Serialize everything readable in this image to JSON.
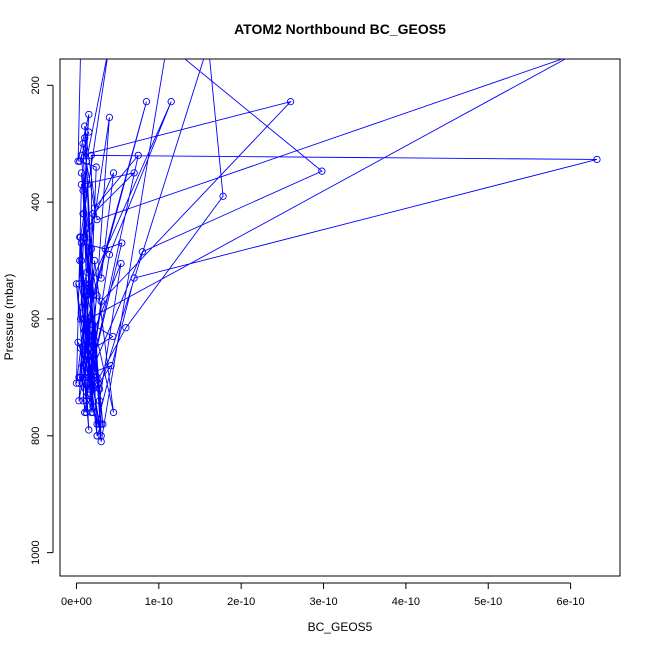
{
  "chart_data": {
    "type": "line",
    "title": "ATOM2 Northbound BC_GEOS5",
    "xlabel": "BC_GEOS5",
    "ylabel": "Pressure (mbar)",
    "xlim": [
      -2e-11,
      6.6e-10
    ],
    "ylim": [
      1040,
      155
    ],
    "y_reversed": true,
    "grid": false,
    "legend": "none",
    "colors": {
      "series": "#0000ff",
      "axis": "#000000",
      "background": "#ffffff"
    },
    "x_ticks": [
      {
        "value": 0,
        "label": "0e+00"
      },
      {
        "value": 1e-10,
        "label": "1e-10"
      },
      {
        "value": 2e-10,
        "label": "2e-10"
      },
      {
        "value": 3e-10,
        "label": "3e-10"
      },
      {
        "value": 4e-10,
        "label": "4e-10"
      },
      {
        "value": 5e-10,
        "label": "5e-10"
      },
      {
        "value": 6e-10,
        "label": "6e-10"
      }
    ],
    "y_ticks": [
      {
        "value": 200,
        "label": "200"
      },
      {
        "value": 400,
        "label": "400"
      },
      {
        "value": 600,
        "label": "600"
      },
      {
        "value": 800,
        "label": "800"
      },
      {
        "value": 1000,
        "label": "1000"
      }
    ],
    "series": [
      {
        "points": [
          [
            5e-12,
            140
          ],
          [
            2e-12,
            330
          ],
          [
            1.5e-11,
            250
          ],
          [
            8e-12,
            420
          ],
          [
            2.5e-11,
            560
          ],
          [
            1e-11,
            700
          ],
          [
            0.0,
            540
          ],
          [
            2e-11,
            760
          ],
          [
            5e-12,
            460
          ],
          [
            4e-11,
            130
          ],
          [
            1.2e-11,
            330
          ],
          [
            5e-12,
            600
          ],
          [
            2.8e-11,
            780
          ],
          [
            3e-12,
            710
          ],
          [
            1.8e-11,
            480
          ],
          [
            6e-12,
            350
          ],
          [
            3e-11,
            800
          ],
          [
            1e-11,
            620
          ],
          [
            8.5e-11,
            228
          ],
          [
            2e-11,
            560
          ],
          [
            8e-12,
            680
          ],
          [
            1.5e-11,
            790
          ],
          [
            4e-12,
            500
          ],
          [
            2.6e-11,
            710
          ],
          [
            9e-12,
            420
          ],
          [
            3.2e-11,
            780
          ],
          [
            1.1e-11,
            560
          ],
          [
            1.15e-10,
            228
          ],
          [
            4e-11,
            490
          ],
          [
            1e-11,
            760
          ],
          [
            5e-12,
            650
          ],
          [
            2.2e-11,
            690
          ],
          [
            1.3e-11,
            370
          ],
          [
            3e-12,
            540
          ],
          [
            2.8e-11,
            720
          ],
          [
            1.6e-10,
            130
          ],
          [
            1.78e-10,
            390
          ],
          [
            6e-11,
            615
          ],
          [
            2e-11,
            720
          ],
          [
            8e-12,
            600
          ],
          [
            2.5e-11,
            800
          ],
          [
            1.4e-11,
            470
          ],
          [
            6e-12,
            320
          ],
          [
            2.6e-10,
            228
          ],
          [
            3e-11,
            570
          ],
          [
            1.2e-11,
            740
          ],
          [
            4e-12,
            460
          ],
          [
            2e-11,
            690
          ],
          [
            7e-12,
            580
          ],
          [
            3e-11,
            810
          ],
          [
            1.1e-10,
            130
          ],
          [
            2.98e-10,
            347
          ],
          [
            8e-11,
            485
          ],
          [
            1.5e-11,
            700
          ],
          [
            2e-12,
            640
          ],
          [
            2.6e-11,
            710
          ],
          [
            1e-11,
            270
          ],
          [
            2.5e-11,
            430
          ],
          [
            6e-10,
            150
          ],
          [
            1.5e-11,
            600
          ],
          [
            5e-12,
            700
          ],
          [
            2e-11,
            750
          ],
          [
            1.8e-11,
            320
          ],
          [
            6.32e-10,
            327
          ],
          [
            7e-11,
            530
          ],
          [
            2.5e-11,
            780
          ],
          [
            1.2e-11,
            560
          ],
          [
            3e-12,
            740
          ],
          [
            1.5e-11,
            650
          ],
          [
            2.2e-11,
            500
          ],
          [
            4.5e-11,
            760
          ],
          [
            1e-11,
            540
          ],
          [
            4e-11,
            255
          ],
          [
            1.6e-11,
            720
          ],
          [
            6e-12,
            470
          ],
          [
            3.5e-11,
            480
          ],
          [
            5.5e-11,
            470
          ],
          [
            1.8e-11,
            690
          ],
          [
            7.5e-11,
            320
          ],
          [
            2.2e-11,
            410
          ],
          [
            8e-12,
            300
          ],
          [
            1.3e-11,
            520
          ],
          [
            3e-11,
            530
          ],
          [
            4.5e-11,
            350
          ],
          [
            1e-11,
            460
          ],
          [
            2.5e-11,
            700
          ],
          [
            3e-12,
            700
          ],
          [
            4.2e-11,
            680
          ],
          [
            1.2e-11,
            740
          ],
          [
            2e-11,
            610
          ],
          [
            4.4e-11,
            630
          ],
          [
            1e-11,
            660
          ],
          [
            5.4e-11,
            505
          ],
          [
            2.8e-11,
            740
          ],
          [
            1e-11,
            290
          ],
          [
            1.5e-11,
            280
          ],
          [
            4e-12,
            330
          ],
          [
            2.4e-11,
            340
          ],
          [
            1.2e-11,
            760
          ],
          [
            8e-12,
            740
          ],
          [
            2e-11,
            420
          ],
          [
            7e-11,
            350
          ],
          [
            6e-12,
            370
          ],
          [
            0.0,
            710
          ],
          [
            1.5e-11,
            540
          ],
          [
            3e-11,
            780
          ],
          [
            2.5e-11,
            800
          ],
          [
            1e-11,
            600
          ],
          [
            6e-12,
            500
          ],
          [
            1.8e-11,
            760
          ],
          [
            8e-12,
            380
          ],
          [
            1.3e-11,
            445
          ]
        ]
      }
    ]
  }
}
